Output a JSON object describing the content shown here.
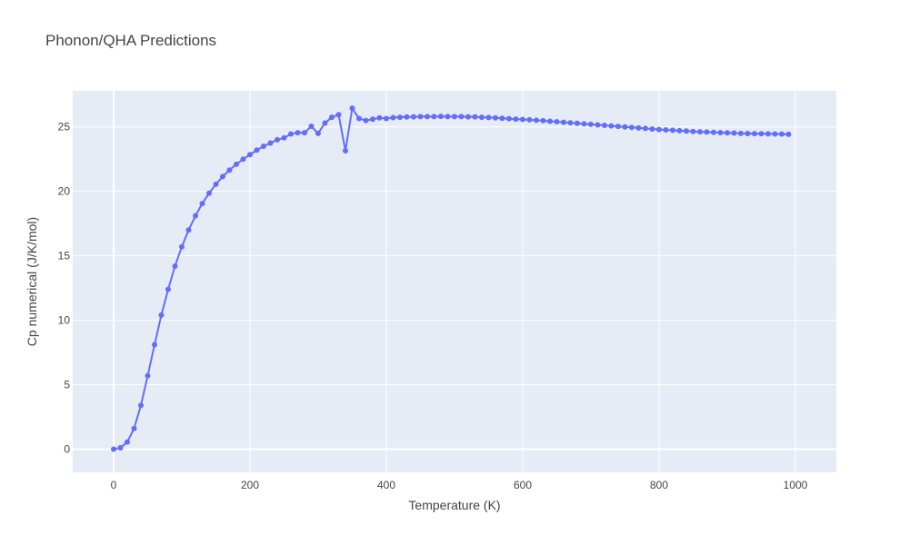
{
  "chart_data": {
    "type": "line",
    "title": "Phonon/QHA Predictions",
    "xlabel": "Temperature (K)",
    "ylabel": "Cp numerical (J/K/mol)",
    "xlim": [
      -60,
      1060
    ],
    "ylim": [
      -1.8,
      27.8
    ],
    "xticks": [
      0,
      200,
      400,
      600,
      800,
      1000
    ],
    "yticks": [
      0,
      5,
      10,
      15,
      20,
      25
    ],
    "grid": true,
    "colors": {
      "series": "#636efa",
      "plot_bg": "#e5ecf6",
      "grid": "#ffffff"
    },
    "series": [
      {
        "mode": "lines+markers",
        "x": [
          0,
          10,
          20,
          30,
          40,
          50,
          60,
          70,
          80,
          90,
          100,
          110,
          120,
          130,
          140,
          150,
          160,
          170,
          180,
          190,
          200,
          210,
          220,
          230,
          240,
          250,
          260,
          270,
          280,
          290,
          300,
          310,
          320,
          330,
          340,
          350,
          360,
          370,
          380,
          390,
          400,
          410,
          420,
          430,
          440,
          450,
          460,
          470,
          480,
          490,
          500,
          510,
          520,
          530,
          540,
          550,
          560,
          570,
          580,
          590,
          600,
          610,
          620,
          630,
          640,
          650,
          660,
          670,
          680,
          690,
          700,
          710,
          720,
          730,
          740,
          750,
          760,
          770,
          780,
          790,
          800,
          810,
          820,
          830,
          840,
          850,
          860,
          870,
          880,
          890,
          900,
          910,
          920,
          930,
          940,
          950,
          960,
          970,
          980,
          990
        ],
        "y": [
          0.0,
          0.1,
          0.55,
          1.6,
          3.4,
          5.7,
          8.1,
          10.4,
          12.4,
          14.2,
          15.7,
          17.0,
          18.1,
          19.05,
          19.85,
          20.55,
          21.15,
          21.65,
          22.1,
          22.5,
          22.85,
          23.2,
          23.5,
          23.75,
          24.0,
          24.15,
          24.45,
          24.55,
          24.55,
          25.05,
          24.5,
          25.3,
          25.75,
          25.95,
          23.15,
          26.45,
          25.65,
          25.5,
          25.6,
          25.7,
          25.65,
          25.72,
          25.75,
          25.77,
          25.78,
          25.8,
          25.8,
          25.8,
          25.82,
          25.8,
          25.8,
          25.8,
          25.78,
          25.78,
          25.75,
          25.73,
          25.7,
          25.67,
          25.64,
          25.61,
          25.58,
          25.55,
          25.52,
          25.48,
          25.44,
          25.4,
          25.36,
          25.32,
          25.28,
          25.24,
          25.2,
          25.16,
          25.12,
          25.08,
          25.04,
          25.0,
          24.96,
          24.92,
          24.88,
          24.84,
          24.8,
          24.77,
          24.74,
          24.71,
          24.68,
          24.65,
          24.62,
          24.6,
          24.58,
          24.56,
          24.54,
          24.52,
          24.5,
          24.49,
          24.48,
          24.47,
          24.46,
          24.45,
          24.44,
          24.43
        ]
      }
    ]
  }
}
